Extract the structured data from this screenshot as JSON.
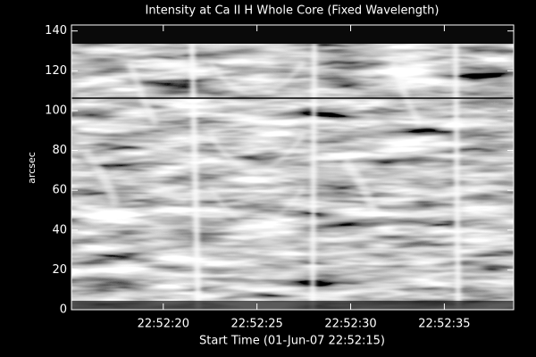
{
  "chart_data": {
    "type": "image",
    "title": "Intensity at Ca II H Whole Core (Fixed Wavelength)",
    "xlabel": "Start Time (01-Jun-07 22:52:15)",
    "ylabel": "arcsec",
    "xlim": [
      15.1,
      38.7
    ],
    "xticks": [
      {
        "value": 20,
        "label": "22:52:20"
      },
      {
        "value": 25,
        "label": "22:52:25"
      },
      {
        "value": 30,
        "label": "22:52:30"
      },
      {
        "value": 35,
        "label": "22:52:35"
      }
    ],
    "ylim": [
      0,
      143
    ],
    "yticks": [
      0,
      20,
      40,
      60,
      80,
      100,
      120,
      140
    ]
  }
}
